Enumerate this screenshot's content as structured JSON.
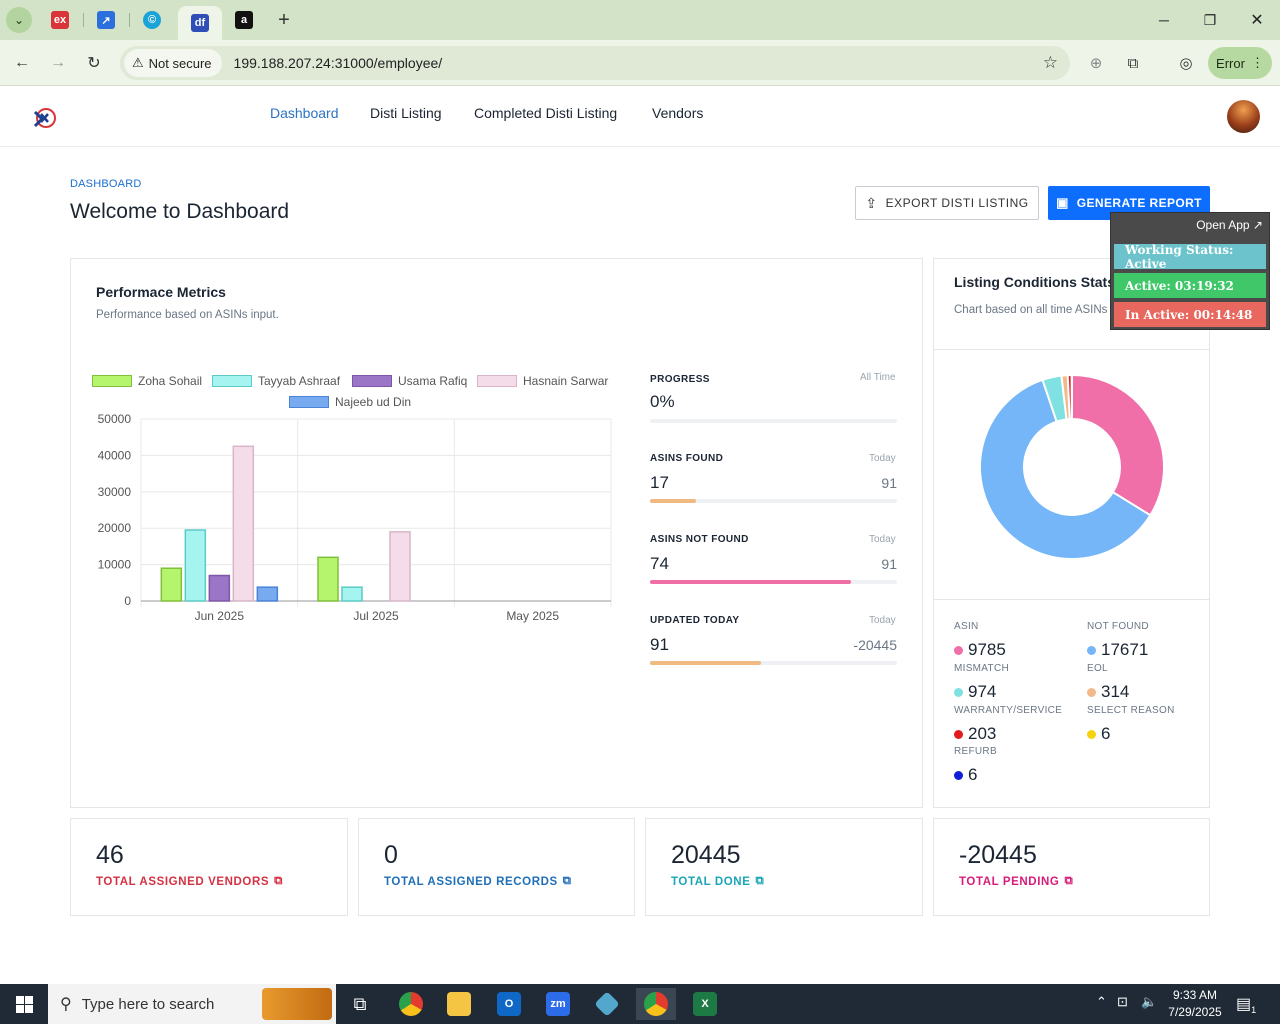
{
  "browser": {
    "tabs": [
      {
        "name": "tab-ex",
        "glyph": "ex",
        "color": "#d9343a",
        "active": false
      },
      {
        "name": "tab-blue-arrow",
        "glyph": "⤴",
        "color": "#2a6fdb",
        "active": false
      },
      {
        "name": "tab-c",
        "glyph": "©",
        "color": "#1aa3d9",
        "active": false
      },
      {
        "name": "tab-df",
        "glyph": "df",
        "color": "#2f4fb6",
        "active": true
      },
      {
        "name": "tab-amazon",
        "glyph": "a",
        "color": "#111111",
        "active": false
      }
    ],
    "security_label": "Not secure",
    "url": "199.188.207.24:31000/employee/",
    "profile_status": "Error"
  },
  "nav": {
    "links": [
      "Dashboard",
      "Disti Listing",
      "Completed Disti Listing",
      "Vendors"
    ],
    "active_index": 0
  },
  "page": {
    "breadcrumb": "DASHBOARD",
    "title": "Welcome to Dashboard",
    "export_label": "EXPORT DISTI LISTING",
    "report_label": "GENERATE REPORT"
  },
  "perf": {
    "title": "Performace Metrics",
    "subtitle": "Performance based on ASINs input."
  },
  "chart_data": {
    "type": "bar",
    "categories": [
      "Jun 2025",
      "Jul 2025",
      "May 2025"
    ],
    "series": [
      {
        "name": "Zoha Sohail",
        "values": [
          9000,
          12000,
          0
        ],
        "fill": "#b5f56e",
        "stroke": "#7fbf3a"
      },
      {
        "name": "Tayyab Ashraaf",
        "values": [
          19500,
          3800,
          0
        ],
        "fill": "#a6f4f0",
        "stroke": "#5ccbc6"
      },
      {
        "name": "Usama Rafiq",
        "values": [
          7000,
          0,
          0
        ],
        "fill": "#9c76c6",
        "stroke": "#7d56a8"
      },
      {
        "name": "Hasnain Sarwar",
        "values": [
          42500,
          19000,
          0
        ],
        "fill": "#f4dde9",
        "stroke": "#d8b5c8"
      },
      {
        "name": "Najeeb ud Din",
        "values": [
          3800,
          0,
          0
        ],
        "fill": "#78aaf0",
        "stroke": "#4a83d6"
      }
    ],
    "yticks": [
      "0",
      "10000",
      "20000",
      "30000",
      "40000",
      "50000"
    ],
    "ylim": [
      0,
      50000
    ]
  },
  "stats": [
    {
      "label": "PROGRESS",
      "time": "All Time",
      "value": "0%",
      "right": "",
      "fill_pct": 0,
      "color": "#f0b982"
    },
    {
      "label": "ASINS FOUND",
      "time": "Today",
      "value": "17",
      "right": "91",
      "fill_pct": 18.7,
      "color": "#f0b982"
    },
    {
      "label": "ASINS NOT FOUND",
      "time": "Today",
      "value": "74",
      "right": "91",
      "fill_pct": 81.3,
      "color": "#ef6fa4"
    },
    {
      "label": "UPDATED TODAY",
      "time": "Today",
      "value": "91",
      "right": "-20445",
      "fill_pct": 45,
      "color": "#f0b982"
    }
  ],
  "conditions": {
    "title": "Listing Conditions Stats",
    "subtitle": "Chart based on all time ASINs",
    "items": [
      {
        "label": "ASIN",
        "value": "9785",
        "color": "#f06fa8"
      },
      {
        "label": "NOT FOUND",
        "value": "17671",
        "color": "#74b6f7"
      },
      {
        "label": "MISMATCH",
        "value": "974",
        "color": "#7fe1e1"
      },
      {
        "label": "EOL",
        "value": "314",
        "color": "#f3b98a"
      },
      {
        "label": "WARRANTY/SERVICE",
        "value": "203",
        "color": "#e21b1b"
      },
      {
        "label": "SELECT REASON",
        "value": "6",
        "color": "#f5d20b"
      },
      {
        "label": "REFURB",
        "value": "6",
        "color": "#1020d8"
      }
    ]
  },
  "tiles": [
    {
      "value": "46",
      "label": "TOTAL ASSIGNED VENDORS",
      "color": "#d63143"
    },
    {
      "value": "0",
      "label": "TOTAL ASSIGNED RECORDS",
      "color": "#1f6fb8"
    },
    {
      "value": "20445",
      "label": "TOTAL DONE",
      "color": "#1aa6b7"
    },
    {
      "value": "-20445",
      "label": "TOTAL PENDING",
      "color": "#d81b7a"
    }
  ],
  "overlay": {
    "open_app": "Open App ↗",
    "working": "Working Status: Active",
    "active": "Active: 03:19:32",
    "inactive": "In Active: 00:14:48"
  },
  "taskbar": {
    "search_placeholder": "Type here to search",
    "time": "9:33 AM",
    "date": "7/29/2025",
    "notification_count": "1"
  }
}
